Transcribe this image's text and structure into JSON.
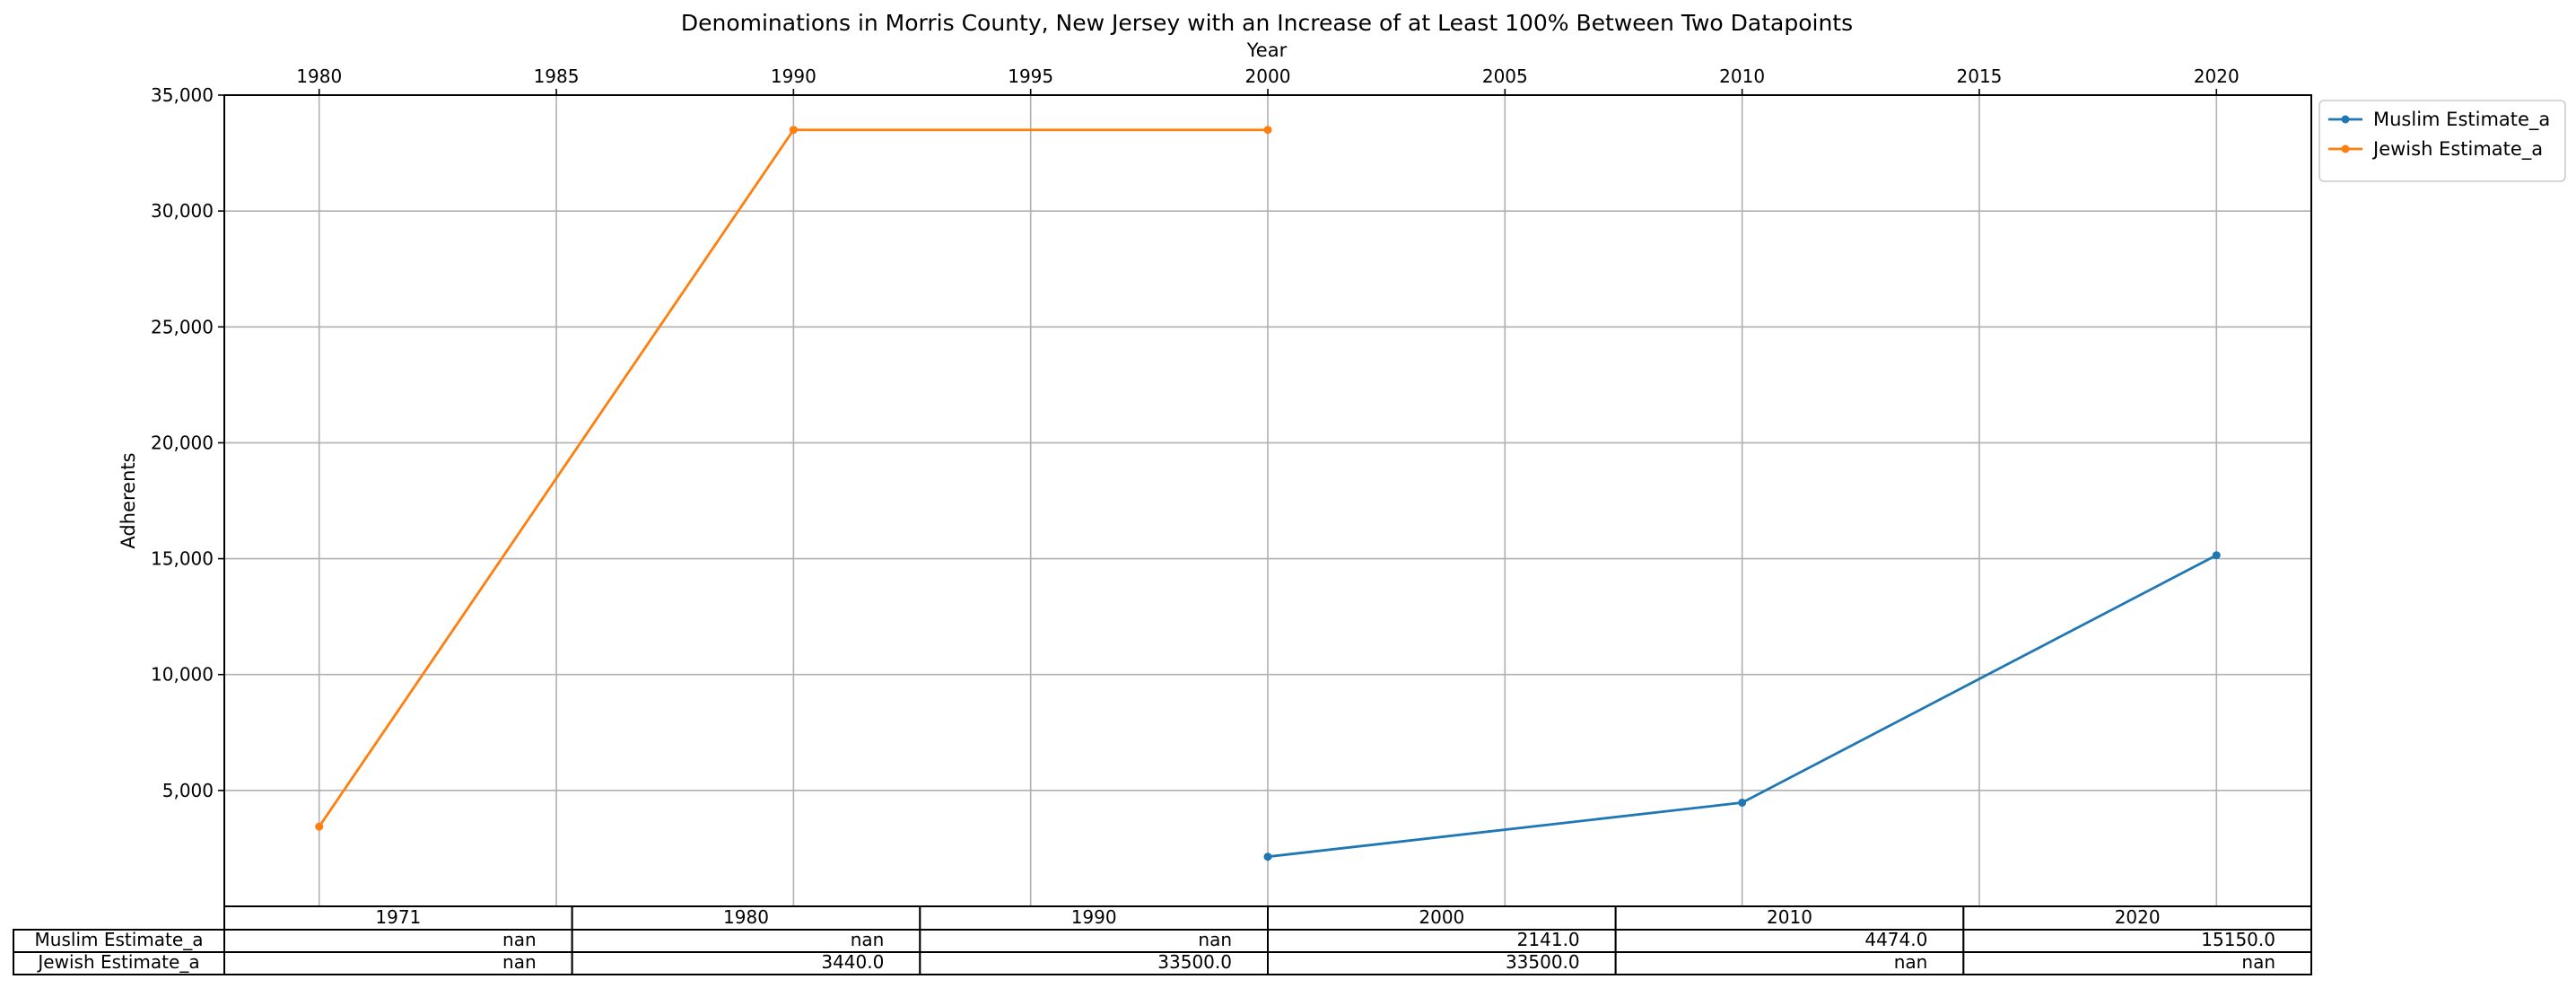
{
  "chart_data": {
    "type": "line",
    "title": "Denominations in Morris County, New Jersey with an Increase of at Least 100% Between Two Datapoints",
    "xlabel": "Year",
    "ylabel": "Adherents",
    "xlim": [
      1978,
      2022
    ],
    "ylim": [
      0,
      35000
    ],
    "x_ticks": [
      1980,
      1985,
      1990,
      1995,
      2000,
      2005,
      2010,
      2015,
      2020
    ],
    "y_ticks": [
      5000,
      10000,
      15000,
      20000,
      25000,
      30000,
      35000
    ],
    "y_tick_labels": [
      "5,000",
      "10,000",
      "15,000",
      "20,000",
      "25,000",
      "30,000",
      "35,000"
    ],
    "grid": true,
    "legend_position": "outside top-right",
    "series": [
      {
        "name": "Muslim Estimate_a",
        "color": "#1f77b4",
        "points": [
          {
            "x": 2000,
            "y": 2141
          },
          {
            "x": 2010,
            "y": 4474
          },
          {
            "x": 2020,
            "y": 15150
          }
        ]
      },
      {
        "name": "Jewish Estimate_a",
        "color": "#ff7f0e",
        "points": [
          {
            "x": 1980,
            "y": 3440
          },
          {
            "x": 1990,
            "y": 33500
          },
          {
            "x": 2000,
            "y": 33500
          }
        ]
      }
    ],
    "table": {
      "columns": [
        "1971",
        "1980",
        "1990",
        "2000",
        "2010",
        "2020"
      ],
      "rows": [
        {
          "label": "Muslim Estimate_a",
          "cells": [
            "nan",
            "nan",
            "nan",
            "2141.0",
            "4474.0",
            "15150.0"
          ]
        },
        {
          "label": "Jewish Estimate_a",
          "cells": [
            "nan",
            "3440.0",
            "33500.0",
            "33500.0",
            "nan",
            "nan"
          ]
        }
      ]
    }
  }
}
